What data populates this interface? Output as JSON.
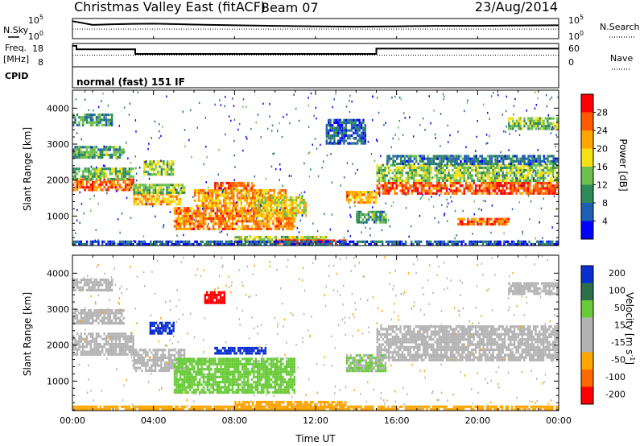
{
  "header": {
    "title": "Christmas Valley East (fitACF)",
    "beam": "Beam 07",
    "date": "23/Aug/2014"
  },
  "left_labels": {
    "nsky": "N.Sky",
    "freq": "Freq.",
    "freq_unit": "[MHz]",
    "cpid": "CPID"
  },
  "right_labels": {
    "nsearch": "N.Search",
    "nave": "Nave"
  },
  "cpid_text": "normal (fast) 151 IF",
  "colors": {
    "power": [
      "#0000ff",
      "#1e5fb4",
      "#2e8b57",
      "#6dbf4f",
      "#f5e015",
      "#ffa500",
      "#ff5a00",
      "#ff0000"
    ],
    "velocity": [
      "#0a2fd0",
      "#2e6e4a",
      "#6acb3a",
      "#b3b3b3",
      "#b3b3b3",
      "#ffa500",
      "#ff6a00",
      "#ff0000"
    ]
  },
  "chart_data": [
    {
      "type": "line",
      "name": "noise",
      "left_ticks": [
        "10^5",
        "10^0"
      ],
      "right_ticks": [
        "10^5",
        "10^0"
      ],
      "series": [
        {
          "name": "N.Sky",
          "x": [
            0,
            1,
            2,
            3,
            4,
            5,
            6,
            8,
            10,
            12,
            14,
            16,
            18,
            20,
            22,
            24
          ],
          "values": [
            50000.0,
            4000.0,
            6000.0,
            8000.0,
            9000.0,
            7000.0,
            5000.0,
            3000.0,
            2000.0,
            1500.0,
            1200.0,
            1500.0,
            2000.0,
            2000.0,
            2500.0,
            3000.0
          ]
        }
      ]
    },
    {
      "type": "line",
      "name": "frequency",
      "left_ticks": [
        "18",
        "8"
      ],
      "right_ticks": [
        "60",
        "0"
      ],
      "series": [
        {
          "name": "Freq",
          "x": [
            0,
            0.2,
            0.2,
            3.1,
            3.1,
            15,
            15,
            24
          ],
          "values": [
            17,
            17,
            15.5,
            15.5,
            13.5,
            13.5,
            15.8,
            15.8
          ]
        },
        {
          "name": "Nave",
          "x": [
            0,
            24
          ],
          "values": [
            30,
            30
          ]
        }
      ]
    },
    {
      "type": "heatmap",
      "name": "power",
      "xlabel": "",
      "ylabel": "Slant Range [km]",
      "yticks": [
        "1000",
        "2000",
        "3000",
        "4000"
      ],
      "xlim": [
        0,
        24
      ],
      "ylim": [
        180,
        4500
      ],
      "colorbar_label": "Power [dB]",
      "colorbar_ticks": [
        "4",
        "8",
        "12",
        "16",
        "20",
        "24",
        "28"
      ],
      "colorbar_range": [
        0,
        32
      ],
      "features": [
        {
          "t0": 0.0,
          "t1": 3.0,
          "r0": 1750,
          "r1": 2050,
          "v": 26
        },
        {
          "t0": 0.0,
          "t1": 3.0,
          "r0": 2050,
          "r1": 2350,
          "v": 14
        },
        {
          "t0": 0.0,
          "t1": 2.5,
          "r0": 2650,
          "r1": 2950,
          "v": 12
        },
        {
          "t0": 0.0,
          "t1": 2.0,
          "r0": 3550,
          "r1": 3850,
          "v": 10
        },
        {
          "t0": 3.0,
          "t1": 5.3,
          "r0": 1350,
          "r1": 1650,
          "v": 21
        },
        {
          "t0": 3.0,
          "t1": 5.5,
          "r0": 1650,
          "r1": 1900,
          "v": 14
        },
        {
          "t0": 3.5,
          "t1": 5.0,
          "r0": 2150,
          "r1": 2550,
          "v": 15
        },
        {
          "t0": 5.0,
          "t1": 11.0,
          "r0": 650,
          "r1": 1250,
          "v": 24
        },
        {
          "t0": 6.0,
          "t1": 10.5,
          "r0": 1250,
          "r1": 1750,
          "v": 22
        },
        {
          "t0": 7.0,
          "t1": 9.0,
          "r0": 1750,
          "r1": 1950,
          "v": 26
        },
        {
          "t0": 9.0,
          "t1": 11.5,
          "r0": 1000,
          "r1": 1550,
          "v": 18
        },
        {
          "t0": 8.0,
          "t1": 12.5,
          "r0": 250,
          "r1": 450,
          "v": 16
        },
        {
          "t0": 10.0,
          "t1": 13.5,
          "r0": 220,
          "r1": 350,
          "v": 30
        },
        {
          "t0": 13.5,
          "t1": 15.0,
          "r0": 1350,
          "r1": 1700,
          "v": 22
        },
        {
          "t0": 14.0,
          "t1": 15.5,
          "r0": 850,
          "r1": 1150,
          "v": 12
        },
        {
          "t0": 15.0,
          "t1": 24.0,
          "r0": 1650,
          "r1": 1950,
          "v": 27
        },
        {
          "t0": 15.0,
          "t1": 24.0,
          "r0": 1950,
          "r1": 2450,
          "v": 15
        },
        {
          "t0": 15.5,
          "t1": 24.0,
          "r0": 2450,
          "r1": 2700,
          "v": 8
        },
        {
          "t0": 19.0,
          "t1": 21.5,
          "r0": 750,
          "r1": 950,
          "v": 25
        },
        {
          "t0": 21.5,
          "t1": 24.0,
          "r0": 3450,
          "r1": 3750,
          "v": 14
        },
        {
          "t0": 12.5,
          "t1": 14.5,
          "r0": 3000,
          "r1": 3700,
          "v": 6
        },
        {
          "t0": 0.0,
          "t1": 24.0,
          "r0": 200,
          "r1": 320,
          "v": 6
        }
      ]
    },
    {
      "type": "heatmap",
      "name": "velocity",
      "xlabel": "Time UT",
      "ylabel": "Slant Range [km]",
      "yticks": [
        "1000",
        "2000",
        "3000",
        "4000"
      ],
      "xticks": [
        "00:00",
        "04:00",
        "08:00",
        "12:00",
        "16:00",
        "20:00",
        "00:00"
      ],
      "xlim": [
        0,
        24
      ],
      "ylim": [
        180,
        4500
      ],
      "colorbar_label": "Velocity [m s^-1]",
      "colorbar_ticks": [
        "200",
        "100",
        "50",
        "15",
        "-15",
        "-50",
        "-100",
        "-200"
      ],
      "features": [
        {
          "t0": 0.0,
          "t1": 3.0,
          "r0": 1750,
          "r1": 2350,
          "v": 0
        },
        {
          "t0": 0.0,
          "t1": 2.5,
          "r0": 2600,
          "r1": 3000,
          "v": 0
        },
        {
          "t0": 0.0,
          "t1": 2.0,
          "r0": 3550,
          "r1": 3850,
          "v": 0
        },
        {
          "t0": 3.0,
          "t1": 5.5,
          "r0": 1300,
          "r1": 1900,
          "v": 0
        },
        {
          "t0": 3.8,
          "t1": 5.0,
          "r0": 2300,
          "r1": 2650,
          "v": 220
        },
        {
          "t0": 5.0,
          "t1": 11.0,
          "r0": 650,
          "r1": 1650,
          "v": 60
        },
        {
          "t0": 7.0,
          "t1": 9.5,
          "r0": 1780,
          "r1": 1950,
          "v": 220
        },
        {
          "t0": 8.0,
          "t1": 13.5,
          "r0": 220,
          "r1": 450,
          "v": -40
        },
        {
          "t0": 15.0,
          "t1": 24.0,
          "r0": 1600,
          "r1": 2550,
          "v": 0
        },
        {
          "t0": 13.5,
          "t1": 15.5,
          "r0": 1300,
          "r1": 1750,
          "v": 30
        },
        {
          "t0": 21.5,
          "t1": 24.0,
          "r0": 3450,
          "r1": 3750,
          "v": 0
        },
        {
          "t0": 6.5,
          "t1": 7.5,
          "r0": 3200,
          "r1": 3500,
          "v": -220
        },
        {
          "t0": 0.0,
          "t1": 24.0,
          "r0": 200,
          "r1": 320,
          "v": -30
        }
      ]
    }
  ]
}
